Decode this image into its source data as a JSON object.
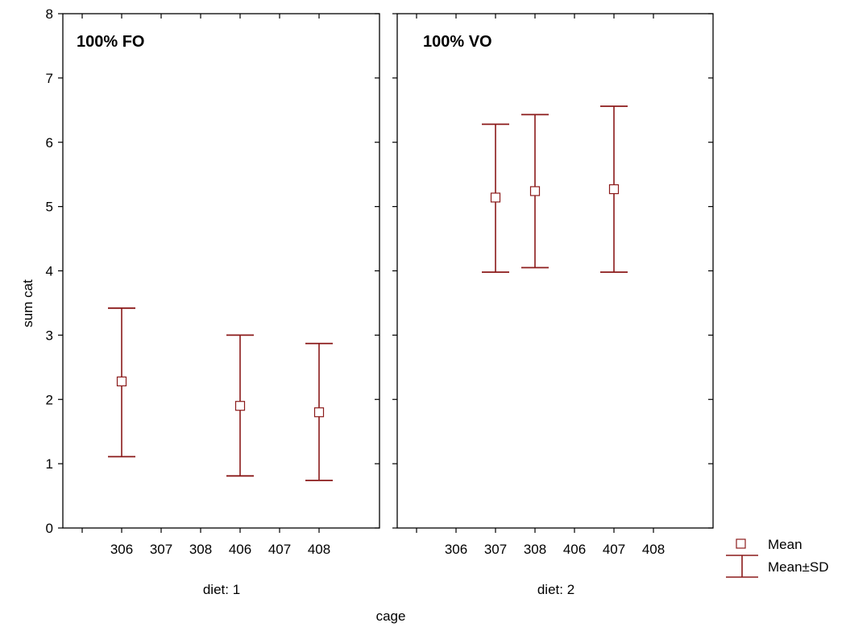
{
  "chart_data": {
    "type": "scatter",
    "subtype": "mean-with-sd-error-bars",
    "ylabel": "sum cat",
    "xlabel": "cage",
    "ylim": [
      0,
      8
    ],
    "yticks": [
      0,
      1,
      2,
      3,
      4,
      5,
      6,
      7,
      8
    ],
    "categories": [
      "306",
      "307",
      "308",
      "406",
      "407",
      "408"
    ],
    "grid": false,
    "colors": {
      "marker": "#8b1a1a",
      "axis": "#000000",
      "marker_fill": "#ffffff"
    },
    "panels": [
      {
        "title": "100% FO",
        "subtitle": "diet: 1",
        "points": [
          {
            "category": "306",
            "mean": 2.28,
            "sd_low": 1.11,
            "sd_high": 3.42
          },
          {
            "category": "406",
            "mean": 1.9,
            "sd_low": 0.81,
            "sd_high": 3.0
          },
          {
            "category": "408",
            "mean": 1.8,
            "sd_low": 0.74,
            "sd_high": 2.87
          }
        ]
      },
      {
        "title": "100% VO",
        "subtitle": "diet: 2",
        "points": [
          {
            "category": "307",
            "mean": 5.14,
            "sd_low": 3.98,
            "sd_high": 6.28
          },
          {
            "category": "308",
            "mean": 5.24,
            "sd_low": 4.05,
            "sd_high": 6.43
          },
          {
            "category": "407",
            "mean": 5.27,
            "sd_low": 3.98,
            "sd_high": 6.56
          }
        ]
      }
    ],
    "legend": {
      "position": "bottom-right",
      "entries": [
        {
          "label": "Mean",
          "symbol": "square"
        },
        {
          "label": "Mean±SD",
          "symbol": "whisker"
        }
      ]
    }
  }
}
